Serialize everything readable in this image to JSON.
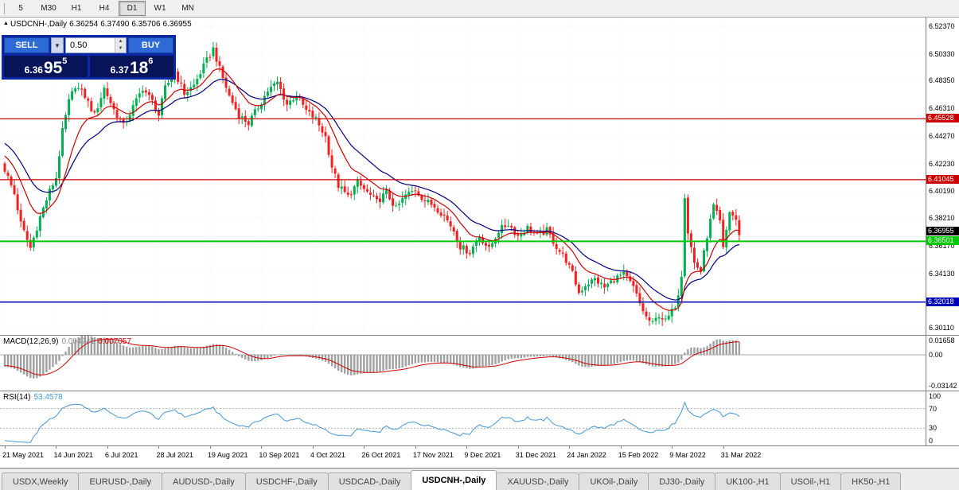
{
  "toolbar": {
    "timeframes": [
      "5",
      "M30",
      "H1",
      "H4",
      "D1",
      "W1",
      "MN"
    ],
    "active": "D1"
  },
  "chart_header": {
    "symbol": "USDCNH-,Daily",
    "open": "6.36254",
    "high": "6.37490",
    "low": "6.35706",
    "close": "6.36955"
  },
  "trade_panel": {
    "sell_label": "SELL",
    "buy_label": "BUY",
    "volume": "0.50",
    "sell_price": {
      "major": "6.36",
      "pips": "95",
      "pipette": "5"
    },
    "buy_price": {
      "major": "6.37",
      "pips": "18",
      "pipette": "6"
    }
  },
  "chart_data": {
    "type": "candlestick",
    "symbol": "USDCNH-",
    "timeframe": "Daily",
    "last_ohlc": {
      "open": 6.36254,
      "high": 6.3749,
      "low": 6.35706,
      "close": 6.36955
    },
    "y_range": [
      6.296,
      6.53
    ],
    "y_ticks": [
      {
        "text": "6.52370",
        "value": 6.5237
      },
      {
        "text": "6.50330",
        "value": 6.5033
      },
      {
        "text": "6.48350",
        "value": 6.4835
      },
      {
        "text": "6.46310",
        "value": 6.4631
      },
      {
        "text": "6.44270",
        "value": 6.4427
      },
      {
        "text": "6.42230",
        "value": 6.4223
      },
      {
        "text": "6.40190",
        "value": 6.4019
      },
      {
        "text": "6.38210",
        "value": 6.3821
      },
      {
        "text": "6.36170",
        "value": 6.3617
      },
      {
        "text": "6.34130",
        "value": 6.3413
      },
      {
        "text": "6.32090",
        "value": 6.3209
      },
      {
        "text": "6.30110",
        "value": 6.3011
      }
    ],
    "h_lines": [
      {
        "value": 6.45528,
        "label": "6.45528",
        "color": "#cc0000",
        "width": 1.2
      },
      {
        "value": 6.41045,
        "label": "6.41045",
        "color": "#cc0000",
        "width": 1.2
      },
      {
        "value": 6.36501,
        "label": "6.36501",
        "color": "#00c800",
        "width": 2
      },
      {
        "value": 6.32018,
        "label": "6.32018",
        "color": "#0000bb",
        "width": 1.5
      }
    ],
    "current_price": {
      "value": 6.36955,
      "label": "6.36955",
      "box_color": "#000000"
    },
    "colors": {
      "up": "#00b050",
      "down": "#f22020",
      "ma_fast": "#cc0000",
      "ma_slow": "#000080"
    },
    "ma_periods": {
      "fast_ema": 12,
      "slow_ema": 24
    },
    "candles": {
      "count": 230,
      "noise": 0.005,
      "anchors": [
        [
          0,
          6.418
        ],
        [
          3,
          6.4
        ],
        [
          5,
          6.378
        ],
        [
          8,
          6.36
        ],
        [
          11,
          6.383
        ],
        [
          14,
          6.402
        ],
        [
          16,
          6.412
        ],
        [
          18,
          6.446
        ],
        [
          20,
          6.468
        ],
        [
          22,
          6.48
        ],
        [
          25,
          6.472
        ],
        [
          28,
          6.458
        ],
        [
          31,
          6.478
        ],
        [
          34,
          6.462
        ],
        [
          37,
          6.45
        ],
        [
          40,
          6.464
        ],
        [
          43,
          6.478
        ],
        [
          46,
          6.468
        ],
        [
          48,
          6.458
        ],
        [
          50,
          6.478
        ],
        [
          53,
          6.49
        ],
        [
          56,
          6.474
        ],
        [
          59,
          6.48
        ],
        [
          62,
          6.494
        ],
        [
          65,
          6.507
        ],
        [
          67,
          6.492
        ],
        [
          70,
          6.472
        ],
        [
          73,
          6.458
        ],
        [
          76,
          6.452
        ],
        [
          79,
          6.464
        ],
        [
          82,
          6.476
        ],
        [
          85,
          6.482
        ],
        [
          88,
          6.466
        ],
        [
          91,
          6.473
        ],
        [
          94,
          6.461
        ],
        [
          97,
          6.455
        ],
        [
          100,
          6.442
        ],
        [
          102,
          6.42
        ],
        [
          104,
          6.406
        ],
        [
          107,
          6.398
        ],
        [
          110,
          6.408
        ],
        [
          113,
          6.401
        ],
        [
          116,
          6.394
        ],
        [
          119,
          6.401
        ],
        [
          122,
          6.389
        ],
        [
          125,
          6.399
        ],
        [
          128,
          6.403
        ],
        [
          131,
          6.395
        ],
        [
          134,
          6.391
        ],
        [
          137,
          6.384
        ],
        [
          140,
          6.373
        ],
        [
          142,
          6.361
        ],
        [
          145,
          6.357
        ],
        [
          148,
          6.369
        ],
        [
          151,
          6.359
        ],
        [
          154,
          6.373
        ],
        [
          157,
          6.378
        ],
        [
          160,
          6.369
        ],
        [
          163,
          6.375
        ],
        [
          166,
          6.369
        ],
        [
          169,
          6.373
        ],
        [
          172,
          6.361
        ],
        [
          175,
          6.351
        ],
        [
          177,
          6.341
        ],
        [
          179,
          6.327
        ],
        [
          181,
          6.333
        ],
        [
          184,
          6.337
        ],
        [
          187,
          6.331
        ],
        [
          190,
          6.337
        ],
        [
          193,
          6.341
        ],
        [
          196,
          6.331
        ],
        [
          198,
          6.319
        ],
        [
          200,
          6.309
        ],
        [
          202,
          6.304
        ],
        [
          204,
          6.311
        ],
        [
          206,
          6.306
        ],
        [
          208,
          6.313
        ],
        [
          209,
          6.318
        ],
        [
          210,
          6.327
        ],
        [
          211,
          6.341
        ],
        [
          212,
          6.399
        ],
        [
          213,
          6.372
        ],
        [
          215,
          6.349
        ],
        [
          217,
          6.343
        ],
        [
          219,
          6.369
        ],
        [
          221,
          6.391
        ],
        [
          223,
          6.379
        ],
        [
          224,
          6.359
        ],
        [
          226,
          6.387
        ],
        [
          228,
          6.381
        ],
        [
          229,
          6.3695
        ]
      ]
    }
  },
  "macd": {
    "label": "MACD(12,26,9)",
    "value1": "0.004741",
    "value2": "0.007057",
    "range": [
      -0.032,
      0.017
    ],
    "scale": [
      {
        "text": "0.01658",
        "value": 0.01658
      },
      {
        "text": "0.00",
        "value": 0
      },
      {
        "text": "-0.03142",
        "value": -0.03142
      }
    ]
  },
  "rsi": {
    "label": "RSI(14)",
    "value": "53.4578",
    "levels": [
      70,
      30
    ],
    "scale": [
      {
        "text": "100",
        "value": 100
      },
      {
        "text": "70",
        "value": 70
      },
      {
        "text": "30",
        "value": 30
      },
      {
        "text": "0",
        "value": 0
      }
    ]
  },
  "x_axis": {
    "bars_per_label": 16,
    "labels": [
      "21 May 2021",
      "14 Jun 2021",
      "6 Jul 2021",
      "28 Jul 2021",
      "19 Aug 2021",
      "10 Sep 2021",
      "4 Oct 2021",
      "26 Oct 2021",
      "17 Nov 2021",
      "9 Dec 2021",
      "31 Dec 2021",
      "24 Jan 2022",
      "15 Feb 2022",
      "9 Mar 2022",
      "31 Mar 2022"
    ]
  },
  "tabs": {
    "active": "USDCNH-,Daily",
    "items": [
      "USDX,Weekly",
      "EURUSD-,Daily",
      "AUDUSD-,Daily",
      "USDCHF-,Daily",
      "USDCAD-,Daily",
      "USDCNH-,Daily",
      "XAUUSD-,Daily",
      "UKOil-,Daily",
      "DJ30-,Daily",
      "UK100-,H1",
      "USOil-,H1",
      "HK50-,H1"
    ]
  }
}
